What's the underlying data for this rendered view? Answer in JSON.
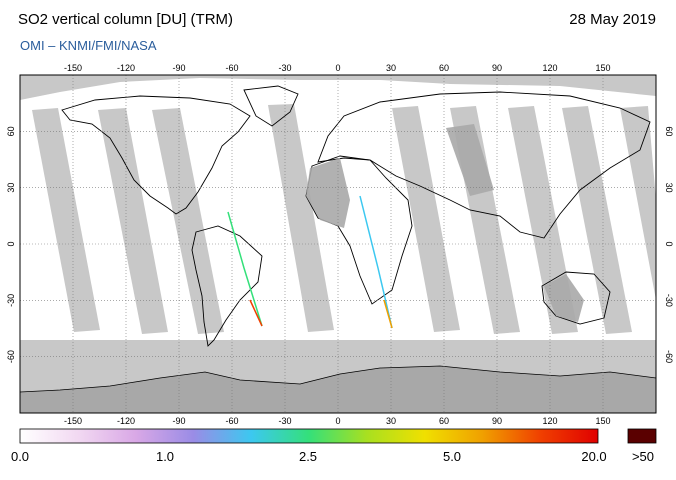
{
  "header": {
    "title": "SO2 vertical column [DU] (TRM)",
    "date": "28 May 2019",
    "credit": "OMI  –  KNMI/FMI/NASA"
  },
  "map": {
    "lon_ticks": [
      "-150",
      "-120",
      "-90",
      "-60",
      "-30",
      "0",
      "30",
      "60",
      "90",
      "120",
      "150"
    ],
    "lat_ticks": [
      "60",
      "30",
      "0",
      "-30",
      "-60"
    ],
    "lon_values": [
      -150,
      -120,
      -90,
      -60,
      -30,
      0,
      30,
      60,
      90,
      120,
      150
    ],
    "lat_values": [
      60,
      30,
      0,
      -30,
      -60
    ],
    "lon_range": [
      -180,
      180
    ],
    "lat_range": [
      -90,
      90
    ],
    "colors": {
      "no_data": "#c8c8c8",
      "dark_land": "#a8a8a8",
      "background": "#ffffff",
      "coastline": "#000000"
    }
  },
  "colorbar": {
    "labels": [
      "0.0",
      "1.0",
      "2.5",
      "5.0",
      "20.0",
      ">50"
    ],
    "colors": [
      "#ffffff",
      "#f2d9f2",
      "#d9a8e6",
      "#9a8ce6",
      "#3cc8f0",
      "#34e07a",
      "#a8e020",
      "#f0e000",
      "#f0a000",
      "#f04000",
      "#e00000"
    ],
    "overflow_color": "#5a0000"
  }
}
